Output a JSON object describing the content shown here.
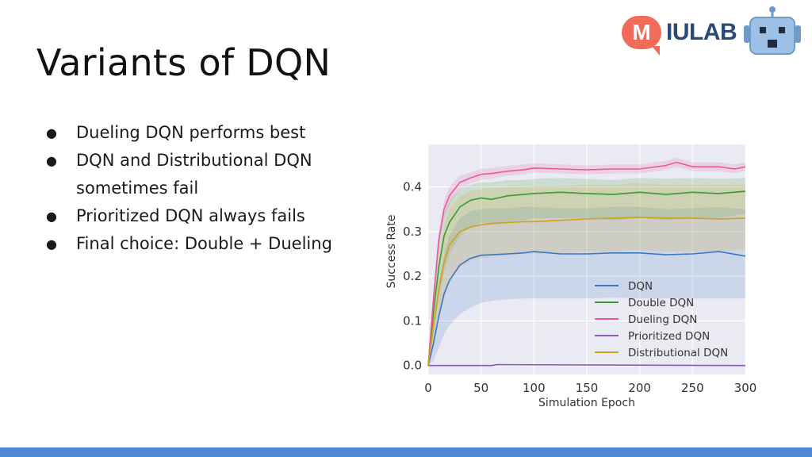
{
  "slide": {
    "title": "Variants of DQN",
    "bullets": [
      {
        "lines": [
          "Dueling DQN performs best"
        ]
      },
      {
        "lines": [
          "DQN and Distributional DQN",
          "sometimes fail"
        ]
      },
      {
        "lines": [
          "Prioritized DQN always fails"
        ]
      },
      {
        "lines": [
          "Final choice: Double + Dueling"
        ]
      }
    ],
    "bullet_glyph": "●"
  },
  "logo": {
    "letter": "M",
    "text": "IULAB"
  },
  "colors": {
    "footer": "#4f86d6",
    "plot_bg": "#eaeaf2",
    "dqn": "#3a78c1",
    "double": "#3a9a35",
    "dueling": "#e8589a",
    "prioritized": "#8a5bbf",
    "distributional": "#d4a017"
  },
  "chart_data": {
    "type": "line",
    "title": "",
    "xlabel": "Simulation Epoch",
    "ylabel": "Success Rate",
    "xlim": [
      0,
      300
    ],
    "ylim": [
      -0.02,
      0.495
    ],
    "xticks": [
      0,
      50,
      100,
      150,
      200,
      250,
      300
    ],
    "yticks": [
      0.0,
      0.1,
      0.2,
      0.3,
      0.4
    ],
    "ytick_labels": [
      "0.0",
      "0.1",
      "0.2",
      "0.3",
      "0.4"
    ],
    "grid": true,
    "legend_position": "bottom-right",
    "series": [
      {
        "name": "DQN",
        "color": "#3a78c1",
        "x": [
          0,
          5,
          10,
          15,
          20,
          30,
          40,
          50,
          60,
          75,
          90,
          100,
          125,
          150,
          175,
          200,
          225,
          250,
          275,
          300
        ],
        "y": [
          0,
          0.05,
          0.11,
          0.16,
          0.19,
          0.225,
          0.24,
          0.247,
          0.248,
          0.25,
          0.252,
          0.255,
          0.25,
          0.25,
          0.252,
          0.252,
          0.248,
          0.25,
          0.255,
          0.245
        ],
        "band_low": [
          0,
          0.01,
          0.04,
          0.07,
          0.09,
          0.115,
          0.13,
          0.14,
          0.145,
          0.148,
          0.15,
          0.15,
          0.15,
          0.15,
          0.152,
          0.15,
          0.15,
          0.15,
          0.15,
          0.15
        ],
        "band_high": [
          0,
          0.1,
          0.18,
          0.25,
          0.29,
          0.33,
          0.345,
          0.35,
          0.352,
          0.352,
          0.355,
          0.355,
          0.352,
          0.352,
          0.355,
          0.355,
          0.35,
          0.352,
          0.355,
          0.35
        ]
      },
      {
        "name": "Double DQN",
        "color": "#3a9a35",
        "x": [
          0,
          5,
          10,
          15,
          20,
          30,
          40,
          50,
          60,
          75,
          90,
          100,
          125,
          150,
          175,
          200,
          225,
          250,
          275,
          300
        ],
        "y": [
          0,
          0.12,
          0.22,
          0.29,
          0.32,
          0.355,
          0.37,
          0.375,
          0.372,
          0.38,
          0.383,
          0.385,
          0.388,
          0.385,
          0.383,
          0.388,
          0.383,
          0.388,
          0.385,
          0.39
        ],
        "band_low": [
          0,
          0.07,
          0.15,
          0.21,
          0.25,
          0.29,
          0.31,
          0.32,
          0.315,
          0.32,
          0.325,
          0.33,
          0.33,
          0.33,
          0.325,
          0.33,
          0.325,
          0.33,
          0.33,
          0.34
        ],
        "band_high": [
          0,
          0.16,
          0.27,
          0.34,
          0.37,
          0.395,
          0.405,
          0.41,
          0.41,
          0.415,
          0.415,
          0.418,
          0.42,
          0.418,
          0.415,
          0.42,
          0.418,
          0.42,
          0.418,
          0.42
        ]
      },
      {
        "name": "Dueling DQN",
        "color": "#e8589a",
        "x": [
          0,
          5,
          10,
          15,
          20,
          30,
          40,
          50,
          60,
          75,
          90,
          100,
          125,
          150,
          175,
          200,
          225,
          235,
          250,
          275,
          290,
          300
        ],
        "y": [
          0,
          0.15,
          0.28,
          0.35,
          0.38,
          0.41,
          0.42,
          0.428,
          0.43,
          0.435,
          0.438,
          0.442,
          0.44,
          0.438,
          0.44,
          0.44,
          0.448,
          0.455,
          0.445,
          0.445,
          0.44,
          0.445
        ],
        "band_low": [
          0,
          0.13,
          0.26,
          0.33,
          0.36,
          0.395,
          0.408,
          0.415,
          0.418,
          0.425,
          0.428,
          0.432,
          0.43,
          0.428,
          0.43,
          0.43,
          0.438,
          0.445,
          0.435,
          0.435,
          0.43,
          0.435
        ],
        "band_high": [
          0,
          0.17,
          0.3,
          0.37,
          0.4,
          0.425,
          0.432,
          0.44,
          0.442,
          0.447,
          0.45,
          0.453,
          0.45,
          0.448,
          0.45,
          0.45,
          0.458,
          0.465,
          0.455,
          0.455,
          0.45,
          0.455
        ]
      },
      {
        "name": "Prioritized  DQN",
        "color": "#8a5bbf",
        "x": [
          0,
          60,
          65,
          300
        ],
        "y": [
          0,
          0,
          0.002,
          0
        ],
        "band_low": [
          0,
          0,
          0,
          0
        ],
        "band_high": [
          0,
          0,
          0.003,
          0
        ]
      },
      {
        "name": "Distributional DQN",
        "color": "#d4a017",
        "x": [
          0,
          5,
          10,
          15,
          20,
          30,
          40,
          50,
          60,
          75,
          90,
          100,
          125,
          150,
          175,
          200,
          225,
          250,
          275,
          300
        ],
        "y": [
          0,
          0.09,
          0.17,
          0.23,
          0.27,
          0.3,
          0.31,
          0.315,
          0.318,
          0.32,
          0.322,
          0.322,
          0.325,
          0.328,
          0.33,
          0.332,
          0.33,
          0.33,
          0.328,
          0.33
        ],
        "band_low": [
          0,
          0.04,
          0.1,
          0.15,
          0.19,
          0.22,
          0.235,
          0.24,
          0.245,
          0.245,
          0.25,
          0.25,
          0.252,
          0.255,
          0.255,
          0.258,
          0.255,
          0.255,
          0.255,
          0.26
        ],
        "band_high": [
          0,
          0.14,
          0.24,
          0.31,
          0.35,
          0.38,
          0.39,
          0.395,
          0.398,
          0.4,
          0.4,
          0.402,
          0.402,
          0.405,
          0.405,
          0.408,
          0.405,
          0.405,
          0.405,
          0.405
        ]
      }
    ]
  }
}
